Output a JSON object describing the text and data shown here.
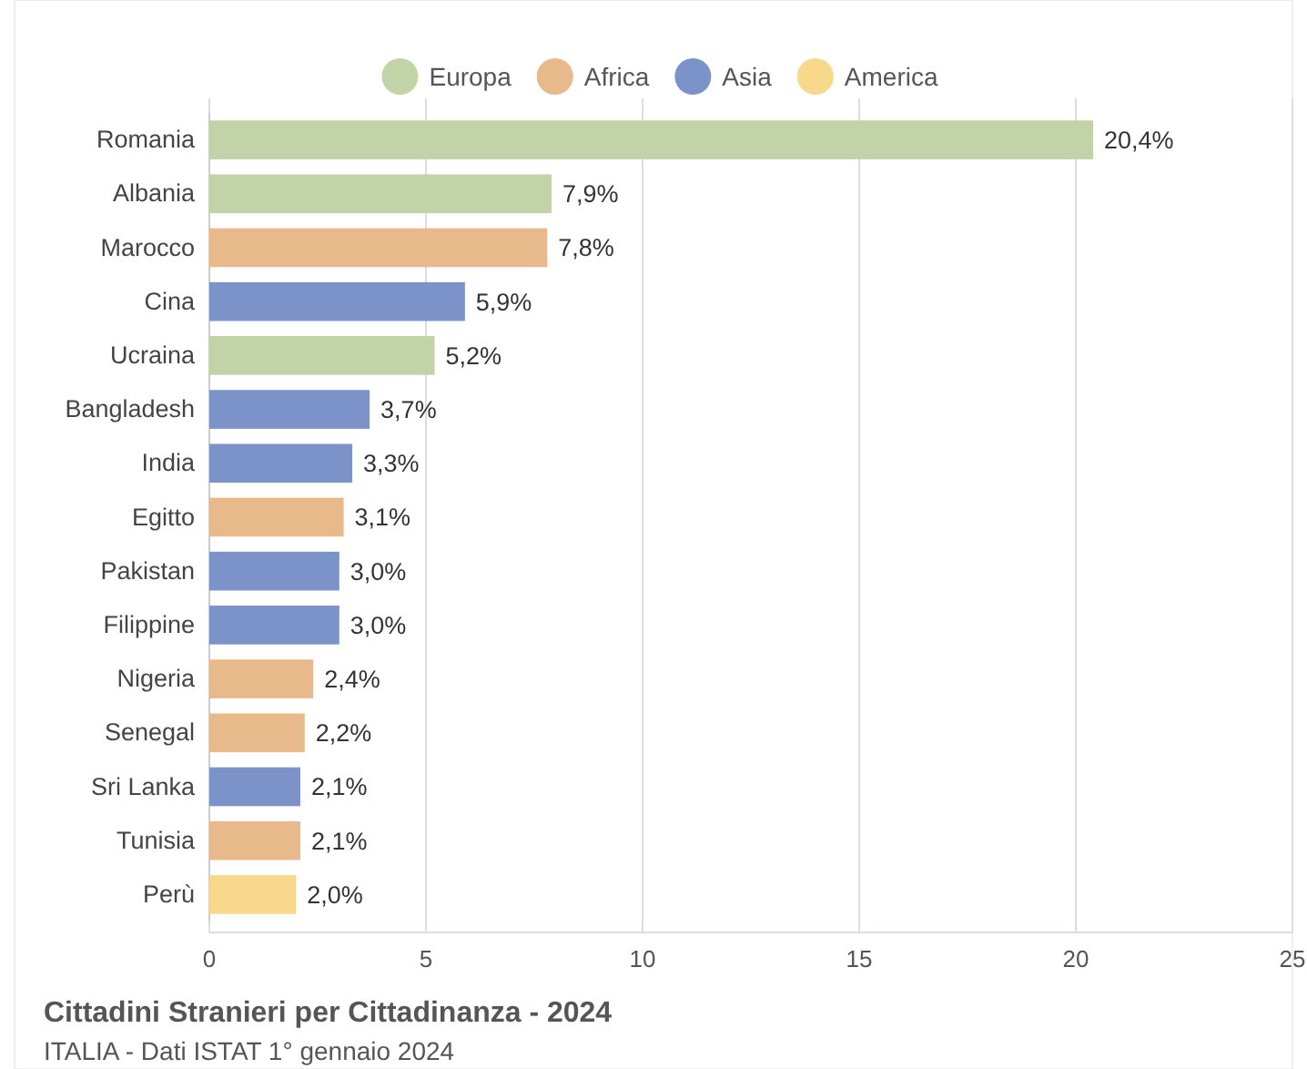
{
  "chart_data": {
    "type": "bar",
    "orientation": "horizontal",
    "title": "Cittadini Stranieri per Cittadinanza - 2024",
    "subtitle": "ITALIA - Dati ISTAT 1° gennaio 2024",
    "categories": [
      "Romania",
      "Albania",
      "Marocco",
      "Cina",
      "Ucraina",
      "Bangladesh",
      "India",
      "Egitto",
      "Pakistan",
      "Filippine",
      "Nigeria",
      "Senegal",
      "Sri Lanka",
      "Tunisia",
      "Perù"
    ],
    "series": [
      {
        "name": "Europa",
        "color": "#c2d3a8",
        "values": [
          20.4,
          7.9,
          null,
          null,
          5.2,
          null,
          null,
          null,
          null,
          null,
          null,
          null,
          null,
          null,
          null
        ],
        "value_labels": [
          "20,4%",
          "7,9%",
          null,
          null,
          "5,2%",
          null,
          null,
          null,
          null,
          null,
          null,
          null,
          null,
          null,
          null
        ]
      },
      {
        "name": "Africa",
        "color": "#e8b98a",
        "values": [
          null,
          null,
          7.8,
          null,
          null,
          null,
          null,
          3.1,
          null,
          null,
          2.4,
          2.2,
          null,
          2.1,
          null
        ],
        "value_labels": [
          null,
          null,
          "7,8%",
          null,
          null,
          null,
          null,
          "3,1%",
          null,
          null,
          "2,4%",
          "2,2%",
          null,
          "2,1%",
          null
        ]
      },
      {
        "name": "Asia",
        "color": "#7b93c9",
        "values": [
          null,
          null,
          null,
          5.9,
          null,
          3.7,
          3.3,
          null,
          3.0,
          3.0,
          null,
          null,
          2.1,
          null,
          null
        ],
        "value_labels": [
          null,
          null,
          null,
          "5,9%",
          null,
          "3,7%",
          "3,3%",
          null,
          "3,0%",
          "3,0%",
          null,
          null,
          "2,1%",
          null,
          null
        ]
      },
      {
        "name": "America",
        "color": "#f8d88a",
        "values": [
          null,
          null,
          null,
          null,
          null,
          null,
          null,
          null,
          null,
          null,
          null,
          null,
          null,
          null,
          2.0
        ],
        "value_labels": [
          null,
          null,
          null,
          null,
          null,
          null,
          null,
          null,
          null,
          null,
          null,
          null,
          null,
          null,
          "2,0%"
        ]
      }
    ],
    "xlim": [
      0,
      25
    ],
    "xticks": [
      0,
      5,
      10,
      15,
      20,
      25
    ],
    "grid": "x",
    "legend": "top"
  }
}
